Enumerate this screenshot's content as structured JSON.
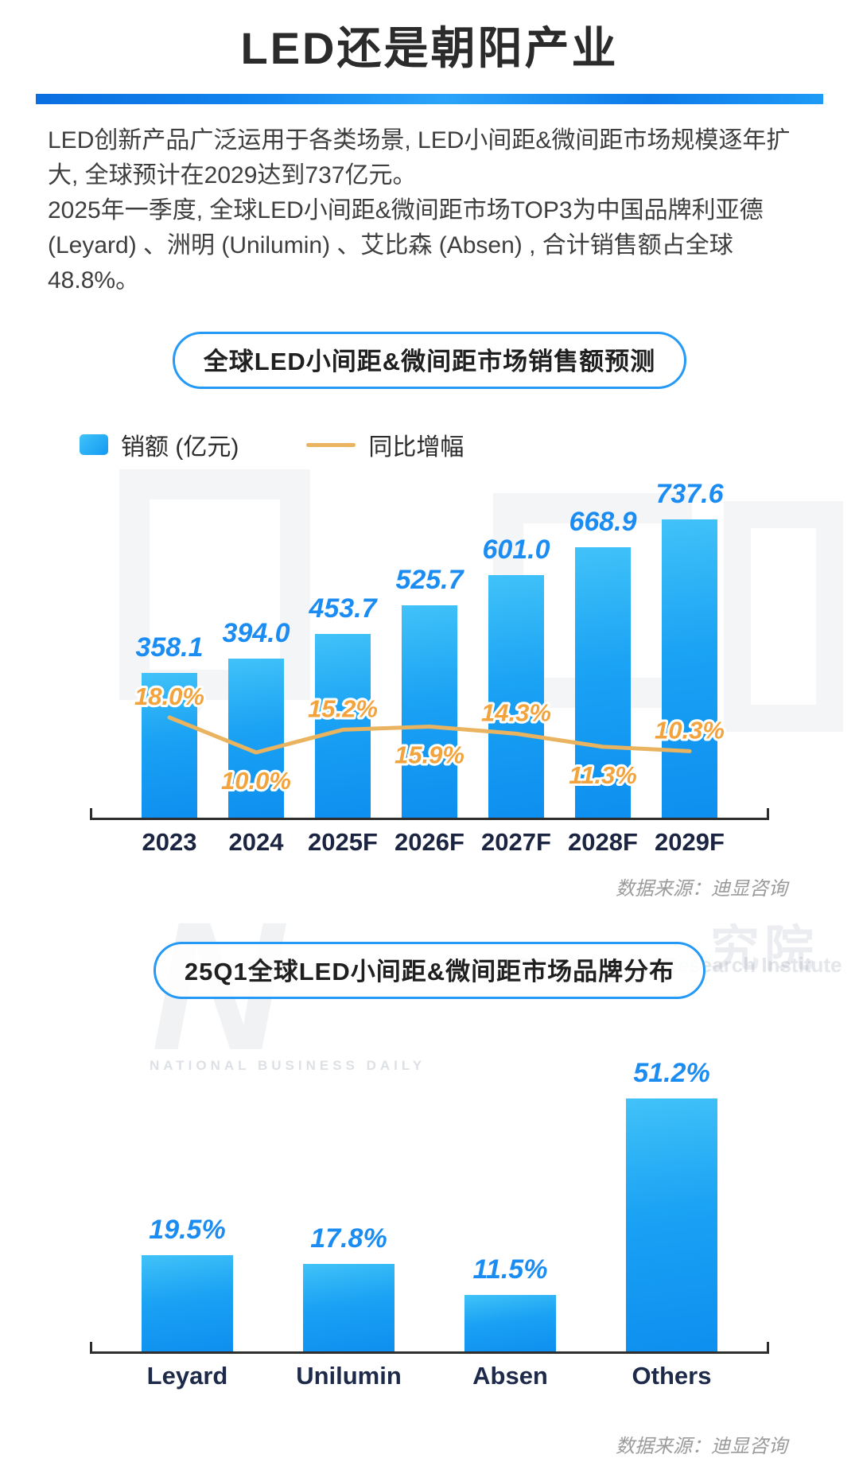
{
  "page": {
    "title": "LED还是朝阳产业",
    "paragraphs": [
      "LED创新产品广泛运用于各类场景, LED小间距&微间距市场规模逐年扩大, 全球预计在2029达到737亿元。",
      "2025年一季度, 全球LED小间距&微间距市场TOP3为中国品牌利亚德 (Leyard) 、洲明 (Unilumin) 、艾比森 (Absen) , 合计销售额占全球48.8%。"
    ]
  },
  "colors": {
    "accent_blue": "#1e9bf5",
    "bar_gradient_top": "#41c2f8",
    "bar_gradient_bottom": "#0e8ff0",
    "value_label_blue": "#1b8cf2",
    "growth_line": "#e9b35f",
    "growth_label_orange": "#f2a33c",
    "axis_label_navy": "#1b2440",
    "source_grey": "#9b9b9b"
  },
  "chart_data": [
    {
      "type": "bar",
      "title": "全球LED小间距&微间距市场销售额预测",
      "legend": [
        {
          "label": "销额 (亿元)",
          "marker": "bar-swatch",
          "color": "#1e9bf5"
        },
        {
          "label": "同比增幅",
          "marker": "line-swatch",
          "color": "#e9b35f"
        }
      ],
      "categories": [
        "2023",
        "2024",
        "2025F",
        "2026F",
        "2027F",
        "2028F",
        "2029F"
      ],
      "series": [
        {
          "name": "销额 (亿元)",
          "type": "bar",
          "values": [
            358.1,
            394.0,
            453.7,
            525.7,
            601.0,
            668.9,
            737.6
          ]
        },
        {
          "name": "同比增幅",
          "type": "line",
          "values": [
            18.0,
            10.0,
            15.2,
            15.9,
            14.3,
            11.3,
            10.3
          ],
          "unit": "%",
          "label_positions": [
            "above",
            "below",
            "above",
            "below",
            "above",
            "below",
            "above"
          ]
        }
      ],
      "ylim": [
        0,
        760
      ],
      "grid": "off",
      "legend_position": "top",
      "source": "数据来源：迪显咨询"
    },
    {
      "type": "bar",
      "title": "25Q1全球LED小间距&微间距市场品牌分布",
      "categories": [
        "Leyard",
        "Unilumin",
        "Absen",
        "Others"
      ],
      "values": [
        19.5,
        17.8,
        11.5,
        51.2
      ],
      "unit": "%",
      "ylim": [
        0,
        55
      ],
      "grid": "off",
      "source": "数据来源：迪显咨询"
    }
  ],
  "watermarks": {
    "n_letter": "N",
    "nbd_caps": "NATIONAL BUSINESS DAILY",
    "institute_line": "NBD Brand Value Research Institute",
    "cn_partial": "究院"
  }
}
